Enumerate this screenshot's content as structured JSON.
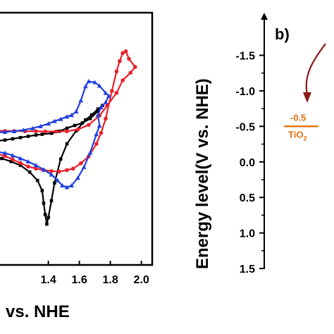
{
  "chart_data": [
    {
      "type": "line",
      "x_tick_labels": [
        "1.4",
        "1.6",
        "1.8",
        "2.0"
      ],
      "x_ticks": [
        1.4,
        1.6,
        1.8,
        2.0
      ],
      "xlabel_fragment": "vs. NHE",
      "xlim": [
        1.07,
        2.07
      ],
      "ylim": [
        0,
        1
      ],
      "colors": {
        "black": "#000000",
        "red": "#e8202a",
        "blue": "#1f3fe0"
      },
      "series": [
        {
          "color_key": "black",
          "marker": "square",
          "points": [
            [
              1.07,
              0.508
            ],
            [
              1.12,
              0.505
            ],
            [
              1.17,
              0.5
            ],
            [
              1.22,
              0.495
            ],
            [
              1.27,
              0.49
            ],
            [
              1.32,
              0.485
            ],
            [
              1.36,
              0.482
            ],
            [
              1.42,
              0.478
            ],
            [
              1.47,
              0.47
            ],
            [
              1.52,
              0.458
            ],
            [
              1.57,
              0.447
            ],
            [
              1.62,
              0.437
            ],
            [
              1.67,
              0.42
            ],
            [
              1.72,
              0.39
            ],
            [
              1.75,
              0.368
            ],
            [
              1.72,
              0.382
            ],
            [
              1.68,
              0.405
            ],
            [
              1.64,
              0.425
            ],
            [
              1.58,
              0.468
            ],
            [
              1.52,
              0.52
            ],
            [
              1.48,
              0.58
            ],
            [
              1.44,
              0.675
            ],
            [
              1.42,
              0.745
            ],
            [
              1.4,
              0.812
            ],
            [
              1.39,
              0.838
            ],
            [
              1.38,
              0.8
            ],
            [
              1.37,
              0.755
            ],
            [
              1.36,
              0.705
            ],
            [
              1.33,
              0.665
            ],
            [
              1.28,
              0.632
            ],
            [
              1.22,
              0.605
            ],
            [
              1.16,
              0.59
            ],
            [
              1.1,
              0.578
            ],
            [
              1.07,
              0.575
            ]
          ]
        },
        {
          "color_key": "red",
          "marker": "circle",
          "points": [
            [
              1.07,
              0.56
            ],
            [
              1.12,
              0.568
            ],
            [
              1.17,
              0.582
            ],
            [
              1.22,
              0.596
            ],
            [
              1.27,
              0.61
            ],
            [
              1.32,
              0.618
            ],
            [
              1.37,
              0.624
            ],
            [
              1.42,
              0.628
            ],
            [
              1.47,
              0.63
            ],
            [
              1.52,
              0.624
            ],
            [
              1.56,
              0.618
            ],
            [
              1.61,
              0.597
            ],
            [
              1.66,
              0.57
            ],
            [
              1.71,
              0.52
            ],
            [
              1.74,
              0.477
            ],
            [
              1.77,
              0.42
            ],
            [
              1.81,
              0.31
            ],
            [
              1.84,
              0.233
            ],
            [
              1.86,
              0.192
            ],
            [
              1.88,
              0.16
            ],
            [
              1.9,
              0.153
            ],
            [
              1.92,
              0.183
            ],
            [
              1.96,
              0.215
            ],
            [
              1.93,
              0.238
            ],
            [
              1.88,
              0.268
            ],
            [
              1.84,
              0.318
            ],
            [
              1.78,
              0.368
            ],
            [
              1.73,
              0.408
            ],
            [
              1.66,
              0.445
            ],
            [
              1.59,
              0.463
            ],
            [
              1.52,
              0.47
            ],
            [
              1.45,
              0.471
            ],
            [
              1.38,
              0.471
            ],
            [
              1.32,
              0.47
            ],
            [
              1.25,
              0.47
            ],
            [
              1.18,
              0.469
            ],
            [
              1.12,
              0.469
            ],
            [
              1.07,
              0.468
            ]
          ]
        },
        {
          "color_key": "blue",
          "marker": "triangle",
          "points": [
            [
              1.07,
              0.552
            ],
            [
              1.12,
              0.556
            ],
            [
              1.17,
              0.566
            ],
            [
              1.22,
              0.578
            ],
            [
              1.27,
              0.59
            ],
            [
              1.32,
              0.605
            ],
            [
              1.37,
              0.622
            ],
            [
              1.42,
              0.642
            ],
            [
              1.46,
              0.665
            ],
            [
              1.49,
              0.685
            ],
            [
              1.52,
              0.692
            ],
            [
              1.55,
              0.685
            ],
            [
              1.59,
              0.655
            ],
            [
              1.63,
              0.612
            ],
            [
              1.67,
              0.555
            ],
            [
              1.71,
              0.482
            ],
            [
              1.73,
              0.448
            ],
            [
              1.72,
              0.405
            ],
            [
              1.74,
              0.375
            ],
            [
              1.77,
              0.355
            ],
            [
              1.79,
              0.33
            ],
            [
              1.77,
              0.318
            ],
            [
              1.73,
              0.29
            ],
            [
              1.7,
              0.276
            ],
            [
              1.66,
              0.272
            ],
            [
              1.64,
              0.292
            ],
            [
              1.61,
              0.348
            ],
            [
              1.58,
              0.392
            ],
            [
              1.55,
              0.406
            ],
            [
              1.52,
              0.412
            ],
            [
              1.48,
              0.422
            ],
            [
              1.44,
              0.43
            ],
            [
              1.4,
              0.44
            ],
            [
              1.35,
              0.45
            ],
            [
              1.3,
              0.458
            ],
            [
              1.24,
              0.465
            ],
            [
              1.18,
              0.47
            ],
            [
              1.12,
              0.473
            ],
            [
              1.07,
              0.475
            ]
          ]
        }
      ]
    },
    {
      "type": "line",
      "panel_label": "b)",
      "ylabel": "Energy level(V vs. NHE)",
      "y_ticks": [
        -1.5,
        -1.0,
        -0.5,
        0.0,
        0.5,
        1.0,
        1.5
      ],
      "y_tick_labels": [
        "-1.5",
        "-1.0",
        "-0.5",
        "0.0",
        "0.5",
        "1.0",
        "1.5"
      ],
      "ylim": [
        -2.1,
        1.5
      ],
      "inverted": true,
      "tio2": {
        "value": -0.5,
        "value_label": "-0.5",
        "name": "TiO",
        "subscript": "2",
        "color": "#e07010"
      },
      "arrow_color": "#8b1a1a"
    }
  ]
}
